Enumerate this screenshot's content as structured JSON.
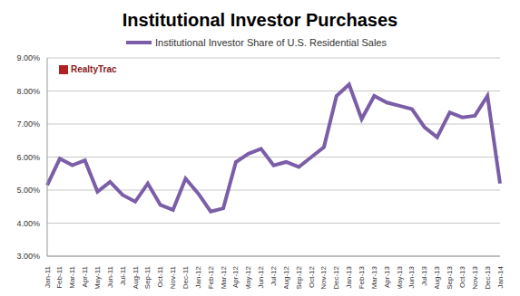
{
  "chart_data": {
    "type": "line",
    "title": "Institutional Investor Purchases",
    "annotation": "RealtyTrac",
    "categories": [
      "Jan-11",
      "Feb-11",
      "Mar-11",
      "Apr-11",
      "May-11",
      "Jun-11",
      "Jul-11",
      "Aug-11",
      "Sep-11",
      "Oct-11",
      "Nov-11",
      "Dec-11",
      "Jan-12",
      "Feb-12",
      "Mar-12",
      "Apr-12",
      "May-12",
      "Jun-12",
      "Jul-12",
      "Aug-12",
      "Sep-12",
      "Oct-12",
      "Nov-12",
      "Dec-12",
      "Jan-13",
      "Feb-13",
      "Mar-13",
      "Apr-13",
      "May-13",
      "Jun-13",
      "Jul-13",
      "Aug-13",
      "Sep-13",
      "Oct-13",
      "Nov-13",
      "Dec-13",
      "Jan-14"
    ],
    "series": [
      {
        "name": "Institutional Investor Share of U.S. Residential Sales",
        "color": "#7b5ea7",
        "values": [
          5.15,
          5.95,
          5.75,
          5.9,
          4.95,
          5.25,
          4.85,
          4.65,
          5.2,
          4.55,
          4.4,
          5.35,
          4.9,
          4.35,
          4.45,
          5.85,
          6.1,
          6.25,
          5.75,
          5.85,
          5.7,
          6.0,
          6.3,
          7.85,
          8.2,
          7.15,
          7.85,
          7.65,
          7.55,
          7.45,
          6.9,
          6.6,
          7.35,
          7.2,
          7.25,
          7.85,
          5.2
        ]
      }
    ],
    "ylim": [
      3,
      9
    ],
    "yticks": [
      {
        "value": 3,
        "label": "3.00%"
      },
      {
        "value": 4,
        "label": "4.00%"
      },
      {
        "value": 5,
        "label": "5.00%"
      },
      {
        "value": 6,
        "label": "6.00%"
      },
      {
        "value": 7,
        "label": "7.00%"
      },
      {
        "value": 8,
        "label": "8.00%"
      },
      {
        "value": 9,
        "label": "9.00%"
      }
    ],
    "grid": true,
    "legend": "top"
  }
}
